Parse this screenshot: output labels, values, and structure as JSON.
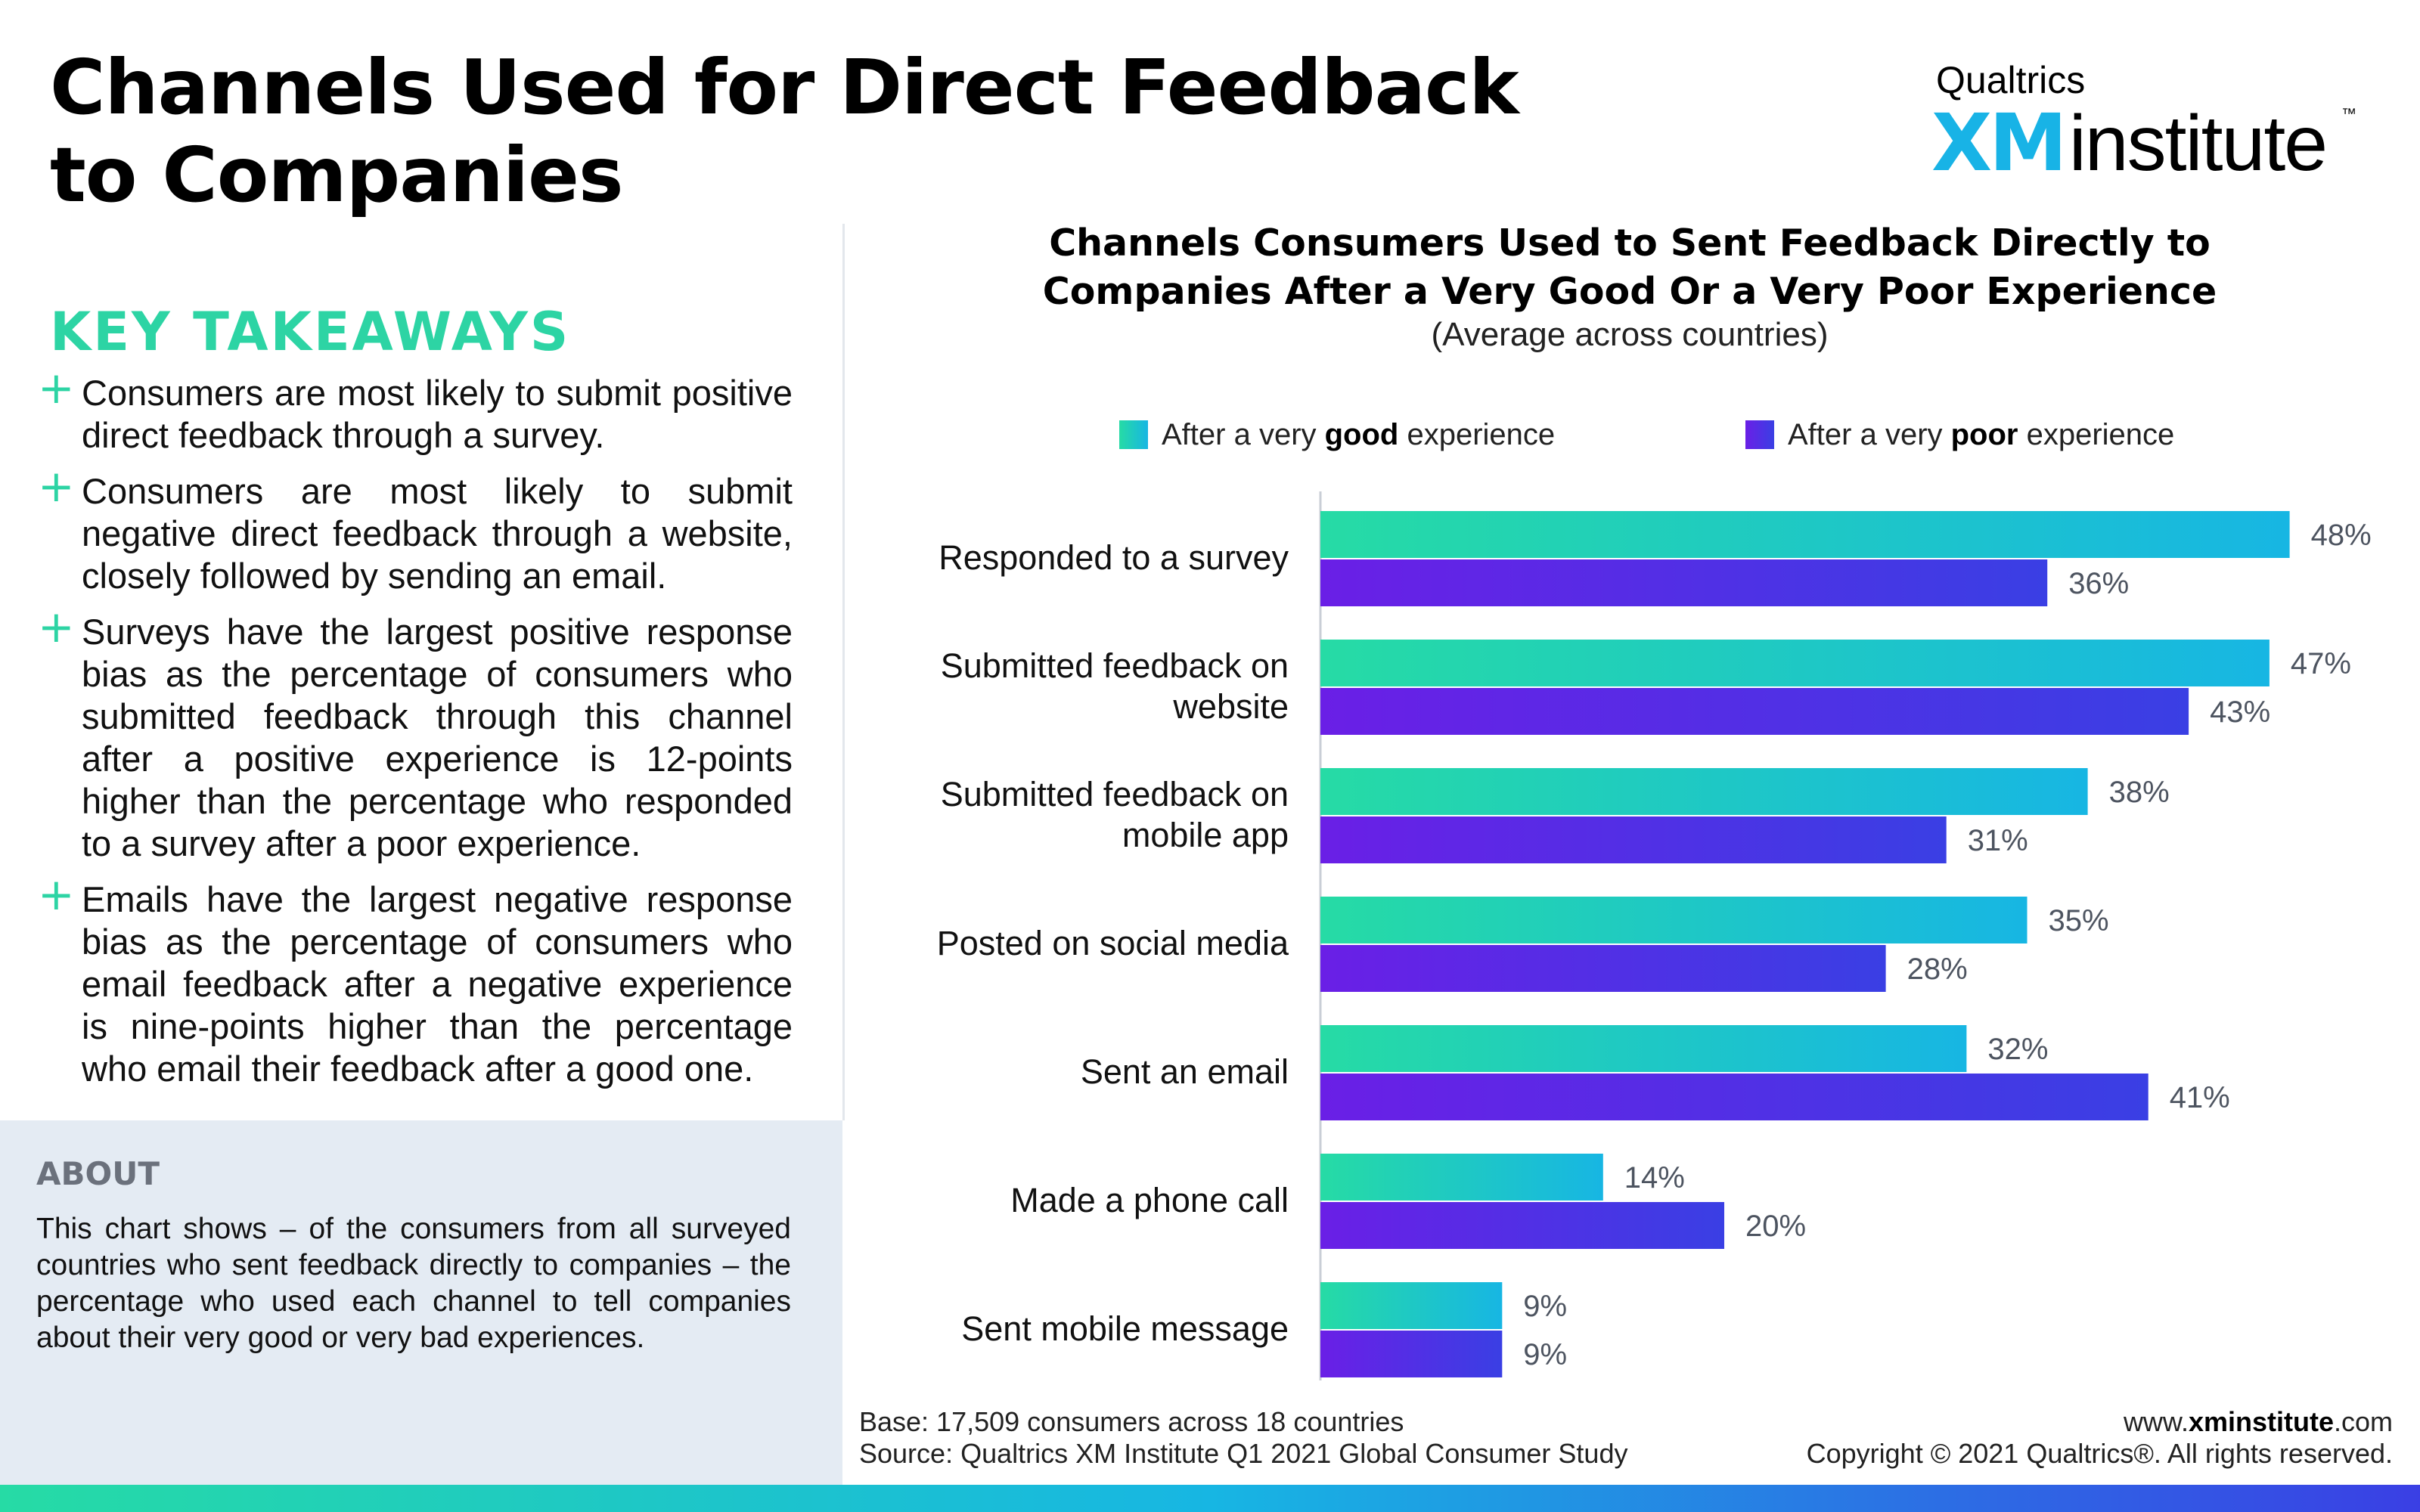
{
  "page": {
    "title_line1": "Channels Used for Direct Feedback",
    "title_line2": "to Companies"
  },
  "logo": {
    "brand": "Qualtrics",
    "product_xm": "XM",
    "product_rest": "institute",
    "tm": "™"
  },
  "takeaways": {
    "heading": "KEY TAKEAWAYS",
    "items": [
      "Consumers are most likely to submit positive direct feedback through a survey.",
      "Consumers are most likely to submit negative direct feedback through a website, closely followed by sending an email.",
      "Surveys have the largest positive response bias as the percentage of consumers who submitted feedback through this channel after a positive experience is 12-points higher than the percentage who responded to a survey after a poor experience.",
      "Emails have the largest negative response bias as the percentage of consumers who email feedback after a negative experience is nine-points higher than the percentage who email their feedback after a good one."
    ]
  },
  "about": {
    "heading": "ABOUT",
    "text": "This chart shows – of the consumers from all surveyed countries who sent feedback directly to companies – the percentage who used each channel to tell companies about their very good or very bad experiences."
  },
  "legend": {
    "good_prefix": "After a very ",
    "good_bold": "good",
    "good_suffix": " experience",
    "poor_prefix": "After a very ",
    "poor_bold": "poor",
    "poor_suffix": " experience"
  },
  "chart_data": {
    "type": "bar",
    "orientation": "horizontal",
    "title_line1": "Channels Consumers Used to Sent Feedback Directly to",
    "title_line2": "Companies After a Very Good Or a Very Poor Experience",
    "subtitle": "(Average across countries)",
    "categories": [
      [
        "Responded to a survey"
      ],
      [
        "Submitted feedback on",
        "website"
      ],
      [
        "Submitted feedback on",
        "mobile app"
      ],
      [
        "Posted on social media"
      ],
      [
        "Sent an email"
      ],
      [
        "Made a phone call"
      ],
      [
        "Sent mobile message"
      ]
    ],
    "series": [
      {
        "name": "After a very good experience",
        "values": [
          48,
          47,
          38,
          35,
          32,
          14,
          9
        ],
        "color": "#26dba5",
        "color_end": "#17b6e3"
      },
      {
        "name": "After a very poor experience",
        "values": [
          36,
          43,
          31,
          28,
          41,
          20,
          9
        ],
        "color": "#6a1fe6",
        "color_end": "#3a3fe4"
      }
    ],
    "value_suffix": "%",
    "xlim": [
      0,
      50
    ],
    "grid": false,
    "legend_position": "top"
  },
  "footer": {
    "base": "Base: 17,509 consumers across 18 countries",
    "source": "Source: Qualtrics XM Institute Q1 2021 Global Consumer Study",
    "url_prefix": "www.",
    "url_bold": "xminstitute",
    "url_suffix": ".com",
    "copyright": "Copyright © 2021 Qualtrics®. All rights reserved."
  },
  "colors": {
    "accent_green": "#2dd4a4",
    "brand_blue": "#18b3e6",
    "good_bar": "#26dba5",
    "poor_bar": "#5a2ce6",
    "about_panel": "#e4ebf3"
  }
}
